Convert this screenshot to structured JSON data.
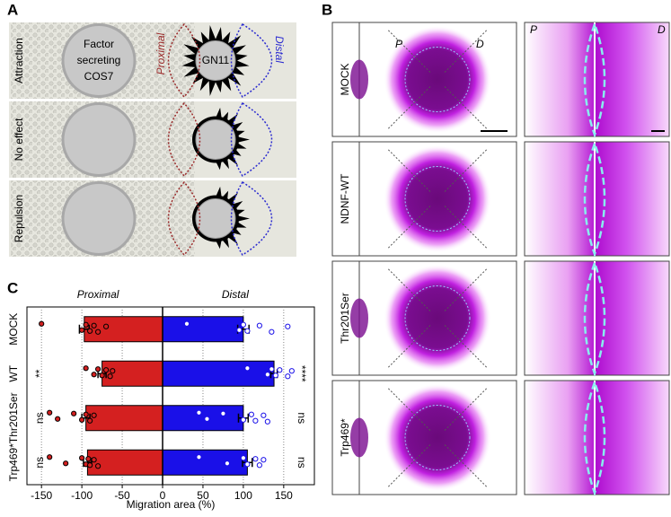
{
  "panel_a": {
    "label": "A",
    "rows": [
      "Attraction",
      "No effect",
      "Repulsion"
    ],
    "cell_label": [
      "Factor",
      "secreting",
      "COS7"
    ],
    "neuron_label": "GN11",
    "proximal": "Proximal",
    "distal": "Distal"
  },
  "panel_b": {
    "label": "B",
    "rows": [
      "MOCK",
      "NDNF-WT",
      "Thr201Ser",
      "Trp469*"
    ],
    "proximal": "P",
    "distal": "D"
  },
  "chart_data": {
    "type": "bar",
    "orientation": "horizontal",
    "panel_label": "C",
    "x_label": "Migration area (%)",
    "categories": [
      "MOCK",
      "WT",
      "Thr201Ser",
      "Trp469*"
    ],
    "series": [
      {
        "name": "Proximal",
        "color": "#d42020",
        "values": [
          -97,
          -75,
          -95,
          -93
        ],
        "errors": [
          6,
          5,
          5,
          5
        ],
        "labels": [
          null,
          "**",
          "ns",
          "ns"
        ],
        "points": [
          [
            -150,
            -100,
            -95,
            -90,
            -85,
            -80,
            -70
          ],
          [
            -95,
            -85,
            -80,
            -75,
            -70,
            -65,
            -62
          ],
          [
            -140,
            -130,
            -110,
            -100,
            -95,
            -90,
            -85
          ],
          [
            -140,
            -120,
            -100,
            -95,
            -92,
            -90,
            -85,
            -80
          ]
        ]
      },
      {
        "name": "Distal",
        "color": "#1a10e8",
        "values": [
          100,
          138,
          100,
          105
        ],
        "errors": [
          7,
          4,
          6,
          6
        ],
        "labels": [
          null,
          "****",
          "ns",
          "ns"
        ],
        "points": [
          [
            30,
            95,
            100,
            105,
            120,
            135,
            155
          ],
          [
            105,
            130,
            135,
            140,
            145,
            155,
            160
          ],
          [
            45,
            55,
            75,
            100,
            110,
            115,
            125,
            130
          ],
          [
            45,
            80,
            100,
            105,
            115,
            120,
            125
          ]
        ]
      }
    ],
    "xlim": [
      -168,
      188
    ],
    "xticks": [
      -150,
      -100,
      -50,
      0,
      50,
      100,
      150
    ]
  }
}
